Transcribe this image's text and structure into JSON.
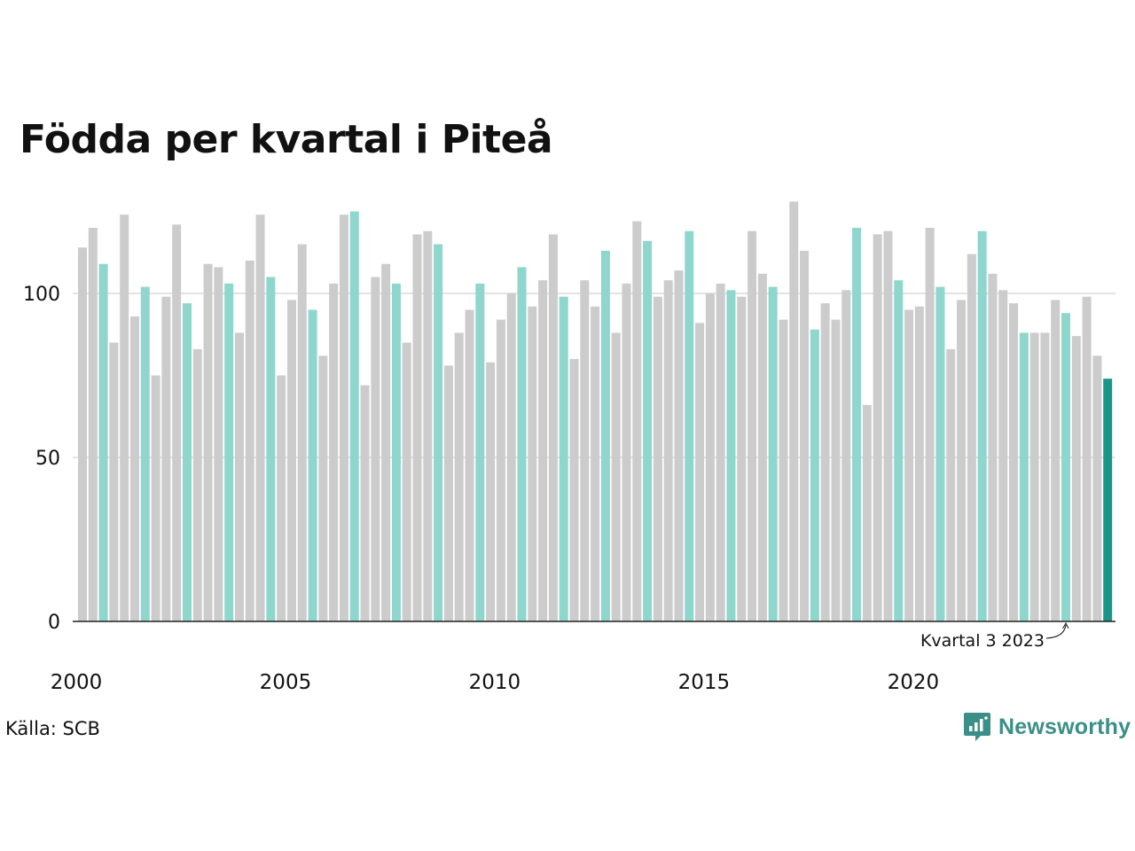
{
  "title": "Födda per kvartal i Piteå",
  "source": "Källa: SCB",
  "brand": "Newsworthy",
  "colors": {
    "other_quarter": "#cccccc",
    "highlight_quarter": "#8fd6cd",
    "latest": "#1a9688",
    "logo": "#3a8f86",
    "grid": "#e3e3e3",
    "axis": "#222222"
  },
  "chart_data": {
    "type": "bar",
    "title": "Födda per kvartal i Piteå",
    "xlabel": "",
    "ylabel": "",
    "ylim": [
      0,
      130
    ],
    "y_ticks": [
      0,
      50,
      100
    ],
    "x_tick_labels": [
      "2000",
      "2005",
      "2010",
      "2015",
      "2020"
    ],
    "grid": "horizontal",
    "highlighted_quarter": 3,
    "annotation": {
      "text": "Kvartal 3 2023",
      "year": 2023,
      "quarter": 3
    },
    "start_year": 2000,
    "values": [
      114,
      120,
      109,
      85,
      124,
      93,
      102,
      75,
      99,
      121,
      97,
      83,
      109,
      108,
      103,
      88,
      110,
      124,
      105,
      75,
      98,
      115,
      95,
      81,
      103,
      124,
      125,
      72,
      105,
      109,
      103,
      85,
      118,
      119,
      115,
      78,
      88,
      95,
      103,
      79,
      92,
      100,
      108,
      96,
      104,
      118,
      99,
      80,
      104,
      96,
      113,
      88,
      103,
      122,
      116,
      99,
      104,
      107,
      119,
      91,
      100,
      103,
      101,
      99,
      119,
      106,
      102,
      92,
      128,
      113,
      89,
      97,
      92,
      101,
      120,
      66,
      118,
      119,
      104,
      95,
      96,
      120,
      102,
      83,
      98,
      112,
      119,
      106,
      101,
      97,
      88,
      88,
      88,
      98,
      94,
      87,
      99,
      81,
      74
    ]
  }
}
